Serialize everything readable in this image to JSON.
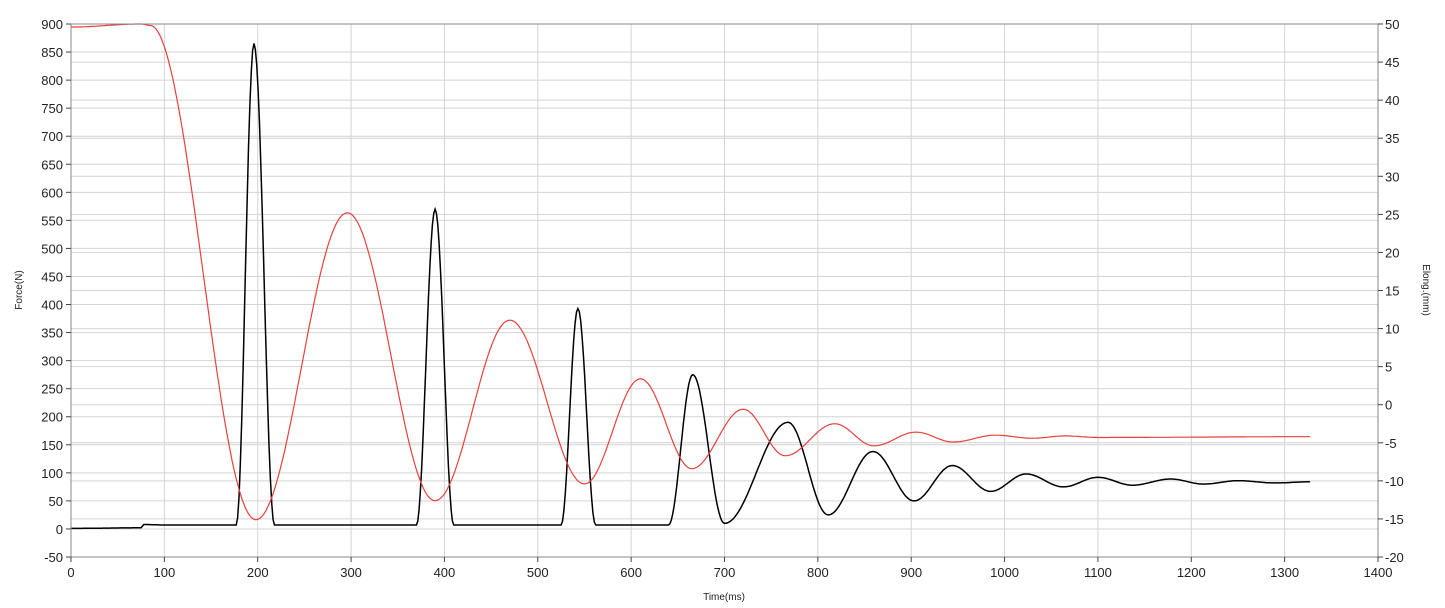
{
  "chart_data": {
    "type": "line",
    "title": "",
    "xlabel": "Time(ms)",
    "ylabel": "Force(N)",
    "y2label": "Elong.(mm)",
    "xlim": [
      0,
      1400
    ],
    "ylim": [
      -50,
      900
    ],
    "y2lim": [
      -20,
      50
    ],
    "xticks": [
      "0",
      "100",
      "200",
      "300",
      "400",
      "500",
      "600",
      "700",
      "800",
      "900",
      "1000",
      "1100",
      "1200",
      "1300",
      "1400"
    ],
    "yticks": [
      "-50",
      "0",
      "50",
      "100",
      "150",
      "200",
      "250",
      "300",
      "350",
      "400",
      "450",
      "500",
      "550",
      "600",
      "650",
      "700",
      "750",
      "800",
      "850",
      "900"
    ],
    "y2ticks": [
      "-20",
      "-15",
      "-10",
      "-5",
      "0",
      "5",
      "10",
      "15",
      "20",
      "25",
      "30",
      "35",
      "40",
      "45",
      "50"
    ],
    "grid": true,
    "series": [
      {
        "axis": "left",
        "color": "#000000",
        "points": [
          [
            0,
            1
          ],
          [
            75,
            2
          ],
          [
            78,
            8
          ],
          [
            100,
            7
          ],
          [
            177,
            7
          ],
          [
            196,
            865
          ],
          [
            218,
            7
          ],
          [
            370,
            7
          ],
          [
            390,
            570
          ],
          [
            410,
            7
          ],
          [
            525,
            7
          ],
          [
            543,
            393
          ],
          [
            562,
            7
          ],
          [
            640,
            7
          ],
          [
            666,
            275
          ],
          [
            700,
            10
          ],
          [
            768,
            190
          ],
          [
            811,
            25
          ],
          [
            859,
            138
          ],
          [
            903,
            50
          ],
          [
            944,
            113
          ],
          [
            985,
            67
          ],
          [
            1023,
            98
          ],
          [
            1063,
            75
          ],
          [
            1100,
            92
          ],
          [
            1137,
            78
          ],
          [
            1178,
            89
          ],
          [
            1213,
            80
          ],
          [
            1250,
            86
          ],
          [
            1290,
            82
          ],
          [
            1327,
            84
          ]
        ]
      },
      {
        "axis": "right",
        "color": "#e8403c",
        "points": [
          [
            0,
            49.6
          ],
          [
            75,
            50
          ],
          [
            85,
            49.8
          ],
          [
            198,
            -15.1
          ],
          [
            296,
            25.2
          ],
          [
            390,
            -12.6
          ],
          [
            470,
            11.1
          ],
          [
            550,
            -10.4
          ],
          [
            610,
            3.4
          ],
          [
            665,
            -8.4
          ],
          [
            720,
            -0.6
          ],
          [
            765,
            -6.7
          ],
          [
            818,
            -2.5
          ],
          [
            860,
            -5.4
          ],
          [
            905,
            -3.6
          ],
          [
            945,
            -4.9
          ],
          [
            990,
            -4.0
          ],
          [
            1030,
            -4.4
          ],
          [
            1065,
            -4.1
          ],
          [
            1100,
            -4.3
          ],
          [
            1327,
            -4.2
          ]
        ]
      }
    ]
  }
}
